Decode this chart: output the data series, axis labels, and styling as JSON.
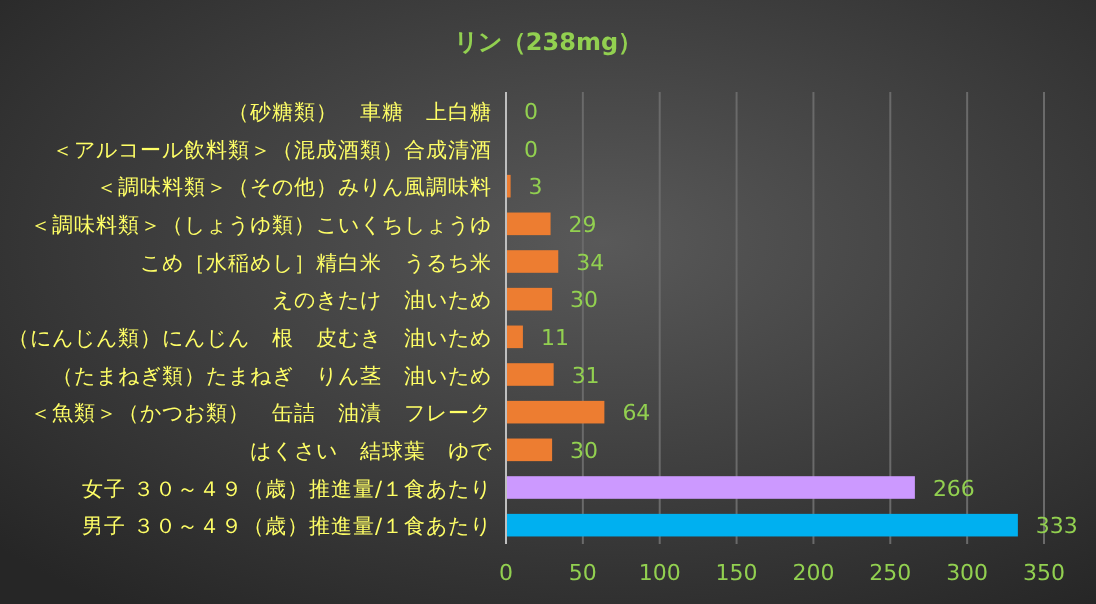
{
  "chart_data": {
    "type": "bar",
    "orientation": "horizontal",
    "title": "リン（238mg）",
    "categories": [
      "（砂糖類）　車糖　上白糖",
      "＜アルコール飲料類＞（混成酒類）合成清酒",
      "＜調味料類＞（その他）みりん風調味料",
      "＜調味料類＞（しょうゆ類）こいくちしょうゆ",
      "こめ［水稲めし］精白米　うるち米",
      "えのきたけ　油いため",
      "（にんじん類）にんじん　根　皮むき　油いため",
      "（たまねぎ類）たまねぎ　りん茎　油いため",
      "＜魚類＞（かつお類）　缶詰　油漬　フレーク",
      "はくさい　結球葉　ゆで",
      "女子 ３０～４９（歳）推進量/１食あたり",
      "男子 ３０～４９（歳）推進量/１食あたり"
    ],
    "values": [
      0,
      0,
      3,
      29,
      34,
      30,
      11,
      31,
      64,
      30,
      266,
      333
    ],
    "colors": [
      "#ed7d31",
      "#ed7d31",
      "#ed7d31",
      "#ed7d31",
      "#ed7d31",
      "#ed7d31",
      "#ed7d31",
      "#ed7d31",
      "#ed7d31",
      "#ed7d31",
      "#cc99ff",
      "#00b0f0"
    ],
    "xlim": [
      0,
      350
    ],
    "xticks": [
      0,
      50,
      100,
      150,
      200,
      250,
      300,
      350
    ],
    "grid": "x",
    "data_labels": true
  }
}
